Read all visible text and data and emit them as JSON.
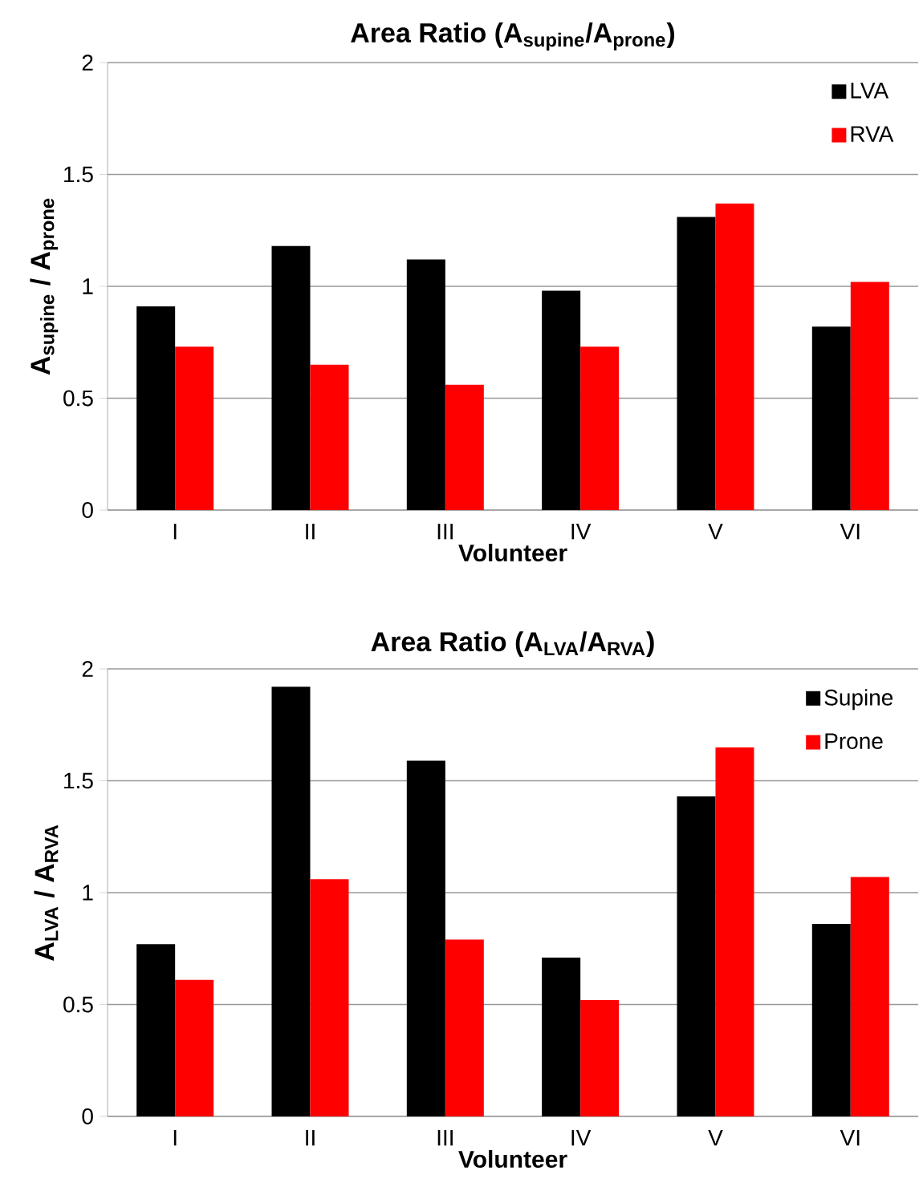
{
  "chart_data": [
    {
      "type": "bar",
      "title": "Area Ratio (A$_{supine}$/A$_{prone}$)",
      "xlabel": "Volunteer",
      "ylabel": "A$_{supine}$ / A$_{prone}$",
      "categories": [
        "I",
        "II",
        "III",
        "IV",
        "V",
        "VI"
      ],
      "series": [
        {
          "name": "LVA",
          "color": "#000000",
          "values": [
            0.91,
            1.18,
            1.12,
            0.98,
            1.31,
            0.82
          ]
        },
        {
          "name": "RVA",
          "color": "#ff0000",
          "values": [
            0.73,
            0.65,
            0.56,
            0.73,
            1.37,
            1.02
          ]
        }
      ],
      "ylim": [
        0,
        2
      ],
      "yticks": [
        0,
        0.5,
        1,
        1.5,
        2
      ],
      "grid": "y",
      "legend": "top right"
    },
    {
      "type": "bar",
      "title": "Area Ratio (A$_{LVA}$/A$_{RVA}$)",
      "xlabel": "Volunteer",
      "ylabel": "A$_{LVA}$ / A$_{RVA}$",
      "categories": [
        "I",
        "II",
        "III",
        "IV",
        "V",
        "VI"
      ],
      "series": [
        {
          "name": "Supine",
          "color": "#000000",
          "values": [
            0.77,
            1.92,
            1.59,
            0.71,
            1.43,
            0.86
          ]
        },
        {
          "name": "Prone",
          "color": "#ff0000",
          "values": [
            0.61,
            1.06,
            0.79,
            0.52,
            1.65,
            1.07
          ]
        }
      ],
      "ylim": [
        0,
        2
      ],
      "yticks": [
        0,
        0.5,
        1,
        1.5,
        2
      ],
      "grid": "y",
      "legend": "top right"
    }
  ]
}
